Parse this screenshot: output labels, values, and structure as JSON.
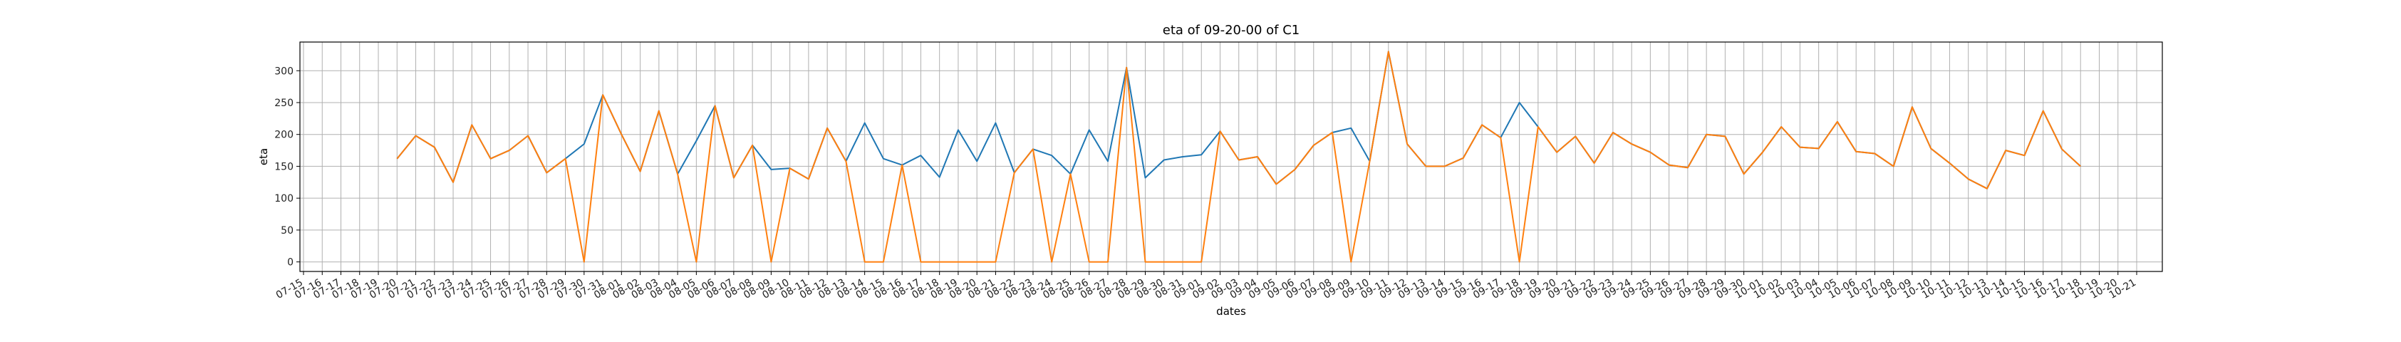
{
  "chart_data": {
    "type": "line",
    "title": "eta of 09-20-00 of C1",
    "xlabel": "dates",
    "ylabel": "eta",
    "ylim": [
      -15,
      345
    ],
    "yticks": [
      0,
      50,
      100,
      150,
      200,
      250,
      300
    ],
    "grid": true,
    "legend": "none",
    "x_ticks": [
      "07-15",
      "07-16",
      "07-17",
      "07-18",
      "07-19",
      "07-20",
      "07-21",
      "07-22",
      "07-23",
      "07-24",
      "07-25",
      "07-26",
      "07-27",
      "07-28",
      "07-29",
      "07-30",
      "07-31",
      "08-01",
      "08-02",
      "08-03",
      "08-04",
      "08-05",
      "08-06",
      "08-07",
      "08-08",
      "08-09",
      "08-10",
      "08-11",
      "08-12",
      "08-13",
      "08-14",
      "08-15",
      "08-16",
      "08-17",
      "08-18",
      "08-19",
      "08-20",
      "08-21",
      "08-22",
      "08-23",
      "08-24",
      "08-25",
      "08-26",
      "08-27",
      "08-28",
      "08-29",
      "08-30",
      "08-31",
      "09-01",
      "09-02",
      "09-03",
      "09-04",
      "09-05",
      "09-06",
      "09-07",
      "09-08",
      "09-09",
      "09-10",
      "09-11",
      "09-12",
      "09-13",
      "09-14",
      "09-15",
      "09-16",
      "09-17",
      "09-18",
      "09-19",
      "09-20",
      "09-21",
      "09-22",
      "09-23",
      "09-24",
      "09-25",
      "09-26",
      "09-27",
      "09-28",
      "09-29",
      "09-30",
      "10-01",
      "10-02",
      "10-03",
      "10-04",
      "10-05",
      "10-06",
      "10-07",
      "10-08",
      "10-09",
      "10-10",
      "10-11",
      "10-12",
      "10-13",
      "10-14",
      "10-15",
      "10-16",
      "10-17",
      "10-18",
      "10-19",
      "10-20",
      "10-21"
    ],
    "series": [
      {
        "color": "#1f77b4",
        "points": [
          [
            "07-20",
            162
          ],
          [
            "07-21",
            198
          ],
          [
            "07-22",
            180
          ],
          [
            "07-23",
            125
          ],
          [
            "07-24",
            215
          ],
          [
            "07-25",
            162
          ],
          [
            "07-26",
            175
          ],
          [
            "07-27",
            198
          ],
          [
            "07-28",
            140
          ],
          [
            "07-29",
            162
          ],
          [
            "07-30",
            185
          ],
          [
            "07-31",
            262
          ],
          [
            "08-01",
            200
          ],
          [
            "08-02",
            142
          ],
          [
            "08-03",
            237
          ],
          [
            "08-04",
            138
          ],
          [
            "08-05",
            190
          ],
          [
            "08-06",
            245
          ],
          [
            "08-07",
            132
          ],
          [
            "08-08",
            183
          ],
          [
            "08-09",
            145
          ],
          [
            "08-10",
            147
          ],
          [
            "08-11",
            130
          ],
          [
            "08-12",
            210
          ],
          [
            "08-13",
            158
          ],
          [
            "08-14",
            218
          ],
          [
            "08-15",
            162
          ],
          [
            "08-16",
            152
          ],
          [
            "08-17",
            167
          ],
          [
            "08-18",
            133
          ],
          [
            "08-19",
            207
          ],
          [
            "08-20",
            158
          ],
          [
            "08-21",
            218
          ],
          [
            "08-22",
            140
          ],
          [
            "08-23",
            177
          ],
          [
            "08-24",
            167
          ],
          [
            "08-25",
            138
          ],
          [
            "08-26",
            207
          ],
          [
            "08-27",
            158
          ],
          [
            "08-28",
            305
          ],
          [
            "08-29",
            132
          ],
          [
            "08-30",
            160
          ],
          [
            "08-31",
            165
          ],
          [
            "09-01",
            168
          ],
          [
            "09-02",
            205
          ],
          [
            "09-03",
            160
          ],
          [
            "09-04",
            165
          ],
          [
            "09-05",
            122
          ],
          [
            "09-06",
            145
          ],
          [
            "09-07",
            183
          ],
          [
            "09-08",
            203
          ],
          [
            "09-09",
            210
          ],
          [
            "09-10",
            158
          ],
          [
            "09-11",
            330
          ],
          [
            "09-12",
            185
          ],
          [
            "09-13",
            150
          ],
          [
            "09-14",
            150
          ],
          [
            "09-15",
            163
          ],
          [
            "09-16",
            215
          ],
          [
            "09-17",
            195
          ],
          [
            "09-18",
            250
          ],
          [
            "09-19",
            212
          ],
          [
            "09-20",
            172
          ],
          [
            "09-21",
            197
          ],
          [
            "09-22",
            155
          ],
          [
            "09-23",
            203
          ],
          [
            "09-24",
            185
          ],
          [
            "09-25",
            172
          ],
          [
            "09-26",
            152
          ],
          [
            "09-27",
            148
          ],
          [
            "09-28",
            200
          ],
          [
            "09-29",
            197
          ],
          [
            "09-30",
            138
          ],
          [
            "10-01",
            172
          ],
          [
            "10-02",
            212
          ],
          [
            "10-03",
            180
          ],
          [
            "10-04",
            178
          ],
          [
            "10-05",
            220
          ],
          [
            "10-06",
            173
          ],
          [
            "10-07",
            170
          ],
          [
            "10-08",
            150
          ],
          [
            "10-09",
            243
          ],
          [
            "10-10",
            178
          ],
          [
            "10-11",
            155
          ],
          [
            "10-12",
            130
          ],
          [
            "10-13",
            115
          ],
          [
            "10-14",
            175
          ],
          [
            "10-15",
            167
          ],
          [
            "10-16",
            237
          ],
          [
            "10-17",
            177
          ],
          [
            "10-18",
            150
          ]
        ]
      },
      {
        "color": "#ff7f0e",
        "points": [
          [
            "07-20",
            162
          ],
          [
            "07-21",
            198
          ],
          [
            "07-22",
            180
          ],
          [
            "07-23",
            125
          ],
          [
            "07-24",
            215
          ],
          [
            "07-25",
            162
          ],
          [
            "07-26",
            175
          ],
          [
            "07-27",
            198
          ],
          [
            "07-28",
            140
          ],
          [
            "07-29",
            162
          ],
          [
            "07-30",
            0
          ],
          [
            "07-31",
            262
          ],
          [
            "08-01",
            200
          ],
          [
            "08-02",
            142
          ],
          [
            "08-03",
            237
          ],
          [
            "08-04",
            138
          ],
          [
            "08-05",
            0
          ],
          [
            "08-06",
            245
          ],
          [
            "08-07",
            132
          ],
          [
            "08-08",
            183
          ],
          [
            "08-09",
            0
          ],
          [
            "08-10",
            147
          ],
          [
            "08-11",
            130
          ],
          [
            "08-12",
            210
          ],
          [
            "08-13",
            158
          ],
          [
            "08-14",
            0
          ],
          [
            "08-15",
            0
          ],
          [
            "08-16",
            152
          ],
          [
            "08-17",
            0
          ],
          [
            "08-18",
            0
          ],
          [
            "08-19",
            0
          ],
          [
            "08-20",
            0
          ],
          [
            "08-21",
            0
          ],
          [
            "08-22",
            140
          ],
          [
            "08-23",
            177
          ],
          [
            "08-24",
            0
          ],
          [
            "08-25",
            138
          ],
          [
            "08-26",
            0
          ],
          [
            "08-27",
            0
          ],
          [
            "08-28",
            305
          ],
          [
            "08-29",
            0
          ],
          [
            "08-30",
            0
          ],
          [
            "08-31",
            0
          ],
          [
            "09-01",
            0
          ],
          [
            "09-02",
            205
          ],
          [
            "09-03",
            160
          ],
          [
            "09-04",
            165
          ],
          [
            "09-05",
            122
          ],
          [
            "09-06",
            145
          ],
          [
            "09-07",
            183
          ],
          [
            "09-08",
            203
          ],
          [
            "09-09",
            0
          ],
          [
            "09-10",
            158
          ],
          [
            "09-11",
            330
          ],
          [
            "09-12",
            185
          ],
          [
            "09-13",
            150
          ],
          [
            "09-14",
            150
          ],
          [
            "09-15",
            163
          ],
          [
            "09-16",
            215
          ],
          [
            "09-17",
            195
          ],
          [
            "09-18",
            0
          ],
          [
            "09-19",
            212
          ],
          [
            "09-20",
            172
          ],
          [
            "09-21",
            197
          ],
          [
            "09-22",
            155
          ],
          [
            "09-23",
            203
          ],
          [
            "09-24",
            185
          ],
          [
            "09-25",
            172
          ],
          [
            "09-26",
            152
          ],
          [
            "09-27",
            148
          ],
          [
            "09-28",
            200
          ],
          [
            "09-29",
            197
          ],
          [
            "09-30",
            138
          ],
          [
            "10-01",
            172
          ],
          [
            "10-02",
            212
          ],
          [
            "10-03",
            180
          ],
          [
            "10-04",
            178
          ],
          [
            "10-05",
            220
          ],
          [
            "10-06",
            173
          ],
          [
            "10-07",
            170
          ],
          [
            "10-08",
            150
          ],
          [
            "10-09",
            243
          ],
          [
            "10-10",
            178
          ],
          [
            "10-11",
            155
          ],
          [
            "10-12",
            130
          ],
          [
            "10-13",
            115
          ],
          [
            "10-14",
            175
          ],
          [
            "10-15",
            167
          ],
          [
            "10-16",
            237
          ],
          [
            "10-17",
            177
          ],
          [
            "10-18",
            150
          ]
        ]
      }
    ]
  }
}
